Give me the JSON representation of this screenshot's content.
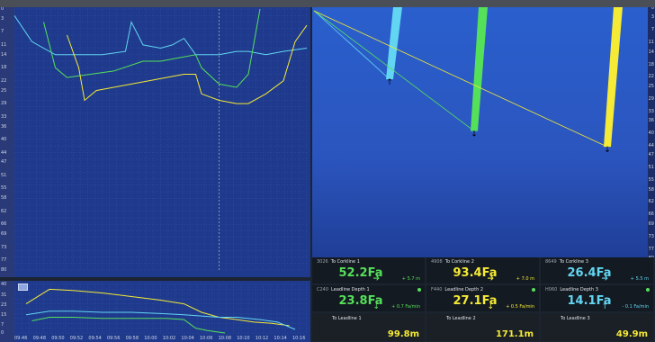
{
  "top_chart": {
    "y_ticks": [
      "0",
      "3",
      "7",
      "11",
      "14",
      "18",
      "22",
      "25",
      "29",
      "33",
      "36",
      "40",
      "44",
      "47",
      "51",
      "55",
      "58",
      "62",
      "66",
      "69",
      "73",
      "77",
      "80"
    ],
    "series": [
      {
        "name": "",
        "color": "#62d5f2",
        "points": [
          [
            0,
            2
          ],
          [
            6,
            10
          ],
          [
            14,
            14
          ],
          [
            22,
            14
          ],
          [
            30,
            14
          ],
          [
            38,
            13
          ],
          [
            40,
            4
          ],
          [
            44,
            11
          ],
          [
            50,
            12
          ],
          [
            54,
            11
          ],
          [
            58,
            9
          ],
          [
            62,
            14
          ],
          [
            70,
            14
          ],
          [
            76,
            13
          ],
          [
            80,
            13
          ],
          [
            86,
            14
          ],
          [
            92,
            13
          ],
          [
            100,
            12
          ]
        ]
      },
      {
        "name": "",
        "color": "#55e05a",
        "points": [
          [
            10,
            4
          ],
          [
            14,
            18
          ],
          [
            18,
            21
          ],
          [
            26,
            20
          ],
          [
            34,
            19
          ],
          [
            44,
            16
          ],
          [
            50,
            16
          ],
          [
            56,
            15
          ],
          [
            62,
            14
          ],
          [
            64,
            18
          ],
          [
            70,
            23
          ],
          [
            76,
            24
          ],
          [
            80,
            20
          ],
          [
            84,
            0
          ]
        ]
      },
      {
        "name": "",
        "color": "#f5ea35",
        "points": [
          [
            18,
            8
          ],
          [
            22,
            18
          ],
          [
            24,
            28
          ],
          [
            28,
            25
          ],
          [
            34,
            24
          ],
          [
            40,
            23
          ],
          [
            46,
            22
          ],
          [
            52,
            21
          ],
          [
            58,
            20
          ],
          [
            62,
            20
          ],
          [
            64,
            26
          ],
          [
            70,
            28
          ],
          [
            76,
            29
          ],
          [
            80,
            29
          ],
          [
            86,
            26
          ],
          [
            92,
            22
          ],
          [
            96,
            10
          ],
          [
            100,
            5
          ]
        ]
      }
    ]
  },
  "bottom_chart": {
    "y_ticks": [
      "40",
      "31",
      "23",
      "15",
      "7",
      "0"
    ],
    "x_ticks": [
      "09:46",
      "09:48",
      "09:50",
      "09:52",
      "09:54",
      "09:56",
      "09:58",
      "10:00",
      "10:02",
      "10:04",
      "10:06",
      "10:08",
      "10:10",
      "10:12",
      "10:14",
      "10:16"
    ],
    "series": [
      {
        "name": "",
        "color": "#f5ea35",
        "points": [
          [
            4,
            24
          ],
          [
            12,
            36
          ],
          [
            20,
            35
          ],
          [
            30,
            33
          ],
          [
            40,
            30
          ],
          [
            50,
            27
          ],
          [
            58,
            24
          ],
          [
            64,
            17
          ],
          [
            70,
            13
          ],
          [
            76,
            11
          ],
          [
            82,
            9
          ],
          [
            88,
            8
          ],
          [
            94,
            6
          ]
        ]
      },
      {
        "name": "",
        "color": "#62d5f2",
        "points": [
          [
            4,
            15
          ],
          [
            12,
            18
          ],
          [
            20,
            18
          ],
          [
            30,
            17
          ],
          [
            40,
            17
          ],
          [
            50,
            16
          ],
          [
            58,
            15
          ],
          [
            64,
            14
          ],
          [
            70,
            13
          ],
          [
            76,
            13
          ],
          [
            84,
            11
          ],
          [
            90,
            9
          ],
          [
            96,
            3
          ]
        ]
      },
      {
        "name": "",
        "color": "#55e05a",
        "points": [
          [
            6,
            10
          ],
          [
            12,
            13
          ],
          [
            20,
            13
          ],
          [
            30,
            12
          ],
          [
            40,
            12
          ],
          [
            52,
            12
          ],
          [
            58,
            11
          ],
          [
            62,
            4
          ],
          [
            66,
            2
          ],
          [
            72,
            0
          ]
        ]
      }
    ]
  },
  "right_axis_ticks": [
    "0",
    "3",
    "7",
    "11",
    "14",
    "18",
    "22",
    "25",
    "29",
    "33",
    "36",
    "40",
    "44",
    "47",
    "51",
    "55",
    "58",
    "62",
    "66",
    "69",
    "73",
    "77",
    "80"
  ],
  "readouts": [
    {
      "id": "3026",
      "label": "To Corkline  1",
      "value": "52.2Fa",
      "change": "+ 5.7 m",
      "color": "green",
      "arrow": "➔"
    },
    {
      "id": "4908",
      "label": "To Corkline  2",
      "value": "93.4Fa",
      "change": "+ 7.0 m",
      "color": "yellow",
      "arrow": "➔"
    },
    {
      "id": "8649",
      "label": "To Corkline  3",
      "value": "26.4Fa",
      "change": "+ 5.5 m",
      "color": "cyan",
      "arrow": "➔"
    },
    {
      "id": "C240",
      "label": "Leadline Depth  1",
      "value": "23.8Fa",
      "change": "+ 0.7 Fa/min",
      "color": "green",
      "arrow": "↓"
    },
    {
      "id": "F440",
      "label": "Leadline Depth  2",
      "value": "27.1Fa",
      "change": "+ 0.5 Fa/min",
      "color": "yellow",
      "arrow": "↓"
    },
    {
      "id": "H060",
      "label": "Leadline Depth  3",
      "value": "14.1Fa",
      "change": "- 0.1 Fa/min",
      "color": "cyan",
      "arrow": "↑"
    }
  ],
  "leadline": [
    {
      "label": "To Leadline  1",
      "value": "99.8m",
      "color": "yellow"
    },
    {
      "label": "To Leadline  2",
      "value": "171.1m",
      "color": "yellow"
    },
    {
      "label": "To Leadline  3",
      "value": "49.9m",
      "color": "yellow"
    }
  ],
  "nets": [
    {
      "color": "#62d5f2",
      "top_x": 95,
      "bottom_x": 86,
      "depth": 0.32
    },
    {
      "color": "#55e05a",
      "top_x": 190,
      "bottom_x": 180,
      "depth": 0.55
    },
    {
      "color": "#f5ea35",
      "top_x": 340,
      "bottom_x": 328,
      "depth": 0.62
    }
  ]
}
